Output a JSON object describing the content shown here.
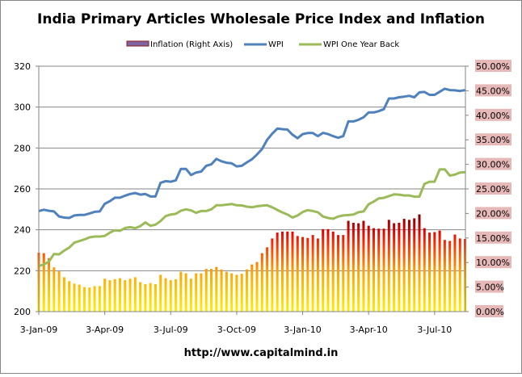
{
  "chart_data": {
    "type": "bar+line",
    "title": "India Primary Articles Wholesale Price Index and Inflation",
    "footer": "http://www.capitalmind.in",
    "legend_position": "top",
    "legend": [
      "Inflation (Right Axis)",
      "WPI",
      "WPI One Year Back"
    ],
    "y_left": {
      "min": 200,
      "max": 320,
      "step": 20,
      "ticks": [
        "200",
        "220",
        "240",
        "260",
        "280",
        "300",
        "320"
      ]
    },
    "y_right": {
      "min": 0,
      "max": 50,
      "step": 5,
      "ticks": [
        "0.00%",
        "5.00%",
        "10.00%",
        "15.00%",
        "20.00%",
        "25.00%",
        "30.00%",
        "35.00%",
        "40.00%",
        "45.00%",
        "50.00%"
      ]
    },
    "x_ticks": [
      {
        "label": "3-Jan-09",
        "week": 0
      },
      {
        "label": "3-Apr-09",
        "week": 13
      },
      {
        "label": "3-Jul-09",
        "week": 26
      },
      {
        "label": "3-Oct-09",
        "week": 39
      },
      {
        "label": "3-Jan-10",
        "week": 52
      },
      {
        "label": "3-Apr-10",
        "week": 65
      },
      {
        "label": "3-Jul-10",
        "week": 78
      }
    ],
    "x_unit": "weeks since 3-Jan-09",
    "grid": true,
    "colors": {
      "wpi": "#4f81bd",
      "wpi_back": "#9bbb59",
      "right_label_bg": "#e6b9b8",
      "grid": "#868686"
    },
    "series": [
      {
        "name": "Inflation (Right Axis)",
        "type": "bar",
        "axis": "right",
        "unit": "%",
        "values": [
          12.0,
          11.9,
          10.9,
          9.0,
          8.2,
          7.0,
          6.2,
          5.7,
          5.5,
          5.0,
          4.9,
          5.2,
          5.2,
          6.7,
          6.4,
          6.6,
          6.8,
          6.4,
          6.7,
          7.0,
          6.0,
          5.6,
          5.8,
          5.6,
          7.5,
          6.8,
          6.4,
          6.6,
          8.1,
          7.8,
          6.7,
          7.8,
          7.8,
          8.7,
          8.7,
          9.1,
          8.6,
          8.1,
          7.8,
          7.5,
          7.7,
          8.6,
          9.6,
          10.1,
          11.9,
          13.1,
          14.9,
          16.1,
          16.3,
          16.3,
          16.3,
          15.4,
          15.2,
          15.0,
          15.6,
          14.9,
          16.8,
          16.8,
          16.3,
          15.6,
          15.6,
          18.5,
          18.1,
          18.0,
          18.5,
          17.5,
          17.0,
          16.9,
          16.9,
          18.7,
          18.0,
          18.1,
          18.9,
          18.7,
          19.0,
          19.8,
          17.0,
          16.1,
          16.2,
          16.5,
          14.6,
          14.4,
          15.7,
          14.9,
          14.8
        ]
      },
      {
        "name": "WPI",
        "type": "line",
        "axis": "left",
        "values": [
          249.2,
          249.8,
          249.3,
          249.0,
          246.5,
          246.0,
          245.8,
          247.0,
          247.3,
          247.3,
          248.0,
          248.8,
          249.0,
          252.7,
          254.0,
          255.7,
          255.7,
          256.7,
          257.5,
          258.0,
          257.2,
          257.5,
          256.3,
          256.3,
          263.0,
          263.8,
          263.5,
          264.2,
          269.8,
          269.8,
          266.8,
          268.0,
          268.5,
          271.3,
          272.0,
          274.7,
          273.5,
          272.8,
          272.5,
          271.0,
          271.3,
          273.0,
          274.5,
          276.8,
          279.5,
          284.0,
          287.0,
          289.5,
          289.2,
          289.0,
          286.5,
          284.8,
          286.8,
          287.3,
          287.3,
          285.8,
          287.4,
          286.8,
          285.8,
          285.0,
          285.8,
          293.0,
          293.0,
          293.8,
          295.0,
          297.4,
          297.4,
          298.0,
          299.0,
          304.2,
          304.2,
          304.8,
          305.1,
          305.5,
          304.8,
          307.2,
          307.4,
          306.0,
          306.0,
          307.5,
          309.0,
          308.3,
          308.2,
          307.9,
          308.3
        ]
      },
      {
        "name": "WPI One Year Back",
        "type": "line",
        "axis": "left",
        "values": [
          222.3,
          223.0,
          224.5,
          228.2,
          228.0,
          229.8,
          231.3,
          233.7,
          234.5,
          235.3,
          236.3,
          236.7,
          236.7,
          237.0,
          238.6,
          239.8,
          239.5,
          240.9,
          241.3,
          240.8,
          241.8,
          243.6,
          242.0,
          242.5,
          244.3,
          246.7,
          247.5,
          247.8,
          249.3,
          250.0,
          249.5,
          248.3,
          249.2,
          249.2,
          250.0,
          252.0,
          252.0,
          252.3,
          252.6,
          252.0,
          251.9,
          251.3,
          251.0,
          251.5,
          251.8,
          252.0,
          251.0,
          249.7,
          248.5,
          247.5,
          246.0,
          247.0,
          248.7,
          249.6,
          249.2,
          248.6,
          246.5,
          245.8,
          245.4,
          246.5,
          247.0,
          247.2,
          247.5,
          248.6,
          249.0,
          252.5,
          253.8,
          255.4,
          255.6,
          256.5,
          257.3,
          257.2,
          256.8,
          256.8,
          256.2,
          256.2,
          262.5,
          263.5,
          263.5,
          269.5,
          269.6,
          266.5,
          267.0,
          268.0,
          268.2
        ]
      }
    ]
  }
}
